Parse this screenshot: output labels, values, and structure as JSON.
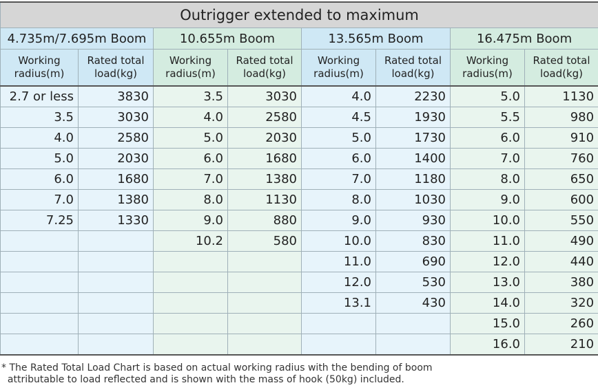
{
  "table": {
    "title": "Outrigger extended to maximum",
    "groups": [
      "4.735m/7.695m Boom",
      "10.655m Boom",
      "13.565m Boom",
      "16.475m Boom"
    ],
    "subheaders": [
      "Working\nradius(m)",
      "Rated total\nload(kg)",
      "Working\nradius(m)",
      "Rated total\nload(kg)",
      "Working\nradius(m)",
      "Rated total\nload(kg)",
      "Working\nradius(m)",
      "Rated total\nload(kg)"
    ],
    "rows": [
      [
        "2.7 or less",
        "3830",
        "3.5",
        "3030",
        "4.0",
        "2230",
        "5.0",
        "1130"
      ],
      [
        "3.5",
        "3030",
        "4.0",
        "2580",
        "4.5",
        "1930",
        "5.5",
        "980"
      ],
      [
        "4.0",
        "2580",
        "5.0",
        "2030",
        "5.0",
        "1730",
        "6.0",
        "910"
      ],
      [
        "5.0",
        "2030",
        "6.0",
        "1680",
        "6.0",
        "1400",
        "7.0",
        "760"
      ],
      [
        "6.0",
        "1680",
        "7.0",
        "1380",
        "7.0",
        "1180",
        "8.0",
        "650"
      ],
      [
        "7.0",
        "1380",
        "8.0",
        "1130",
        "8.0",
        "1030",
        "9.0",
        "600"
      ],
      [
        "7.25",
        "1330",
        "9.0",
        "880",
        "9.0",
        "930",
        "10.0",
        "550"
      ],
      [
        null,
        null,
        "10.2",
        "580",
        "10.0",
        "830",
        "11.0",
        "490"
      ],
      [
        null,
        null,
        null,
        null,
        "11.0",
        "690",
        "12.0",
        "440"
      ],
      [
        null,
        null,
        null,
        null,
        "12.0",
        "530",
        "13.0",
        "380"
      ],
      [
        null,
        null,
        null,
        null,
        "13.1",
        "430",
        "14.0",
        "320"
      ],
      [
        null,
        null,
        null,
        null,
        null,
        null,
        "15.0",
        "260"
      ],
      [
        null,
        null,
        null,
        null,
        null,
        null,
        "16.0",
        "210"
      ]
    ],
    "footnote": "* The Rated Total Load Chart is based on actual working radius with the bending of boom\n  attributable to load reflected and is shown with the mass of hook (50kg) included."
  }
}
